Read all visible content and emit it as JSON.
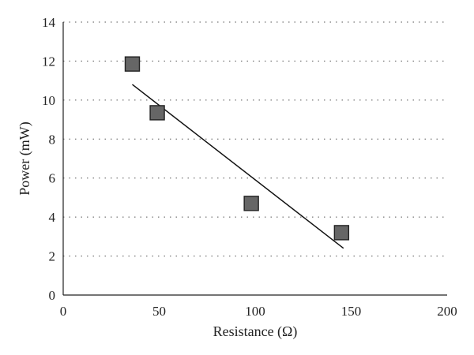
{
  "chart_data": {
    "type": "scatter",
    "xlabel": "Resistance (Ω)",
    "ylabel": "Power (mW)",
    "xlim": [
      0,
      200
    ],
    "ylim": [
      0,
      14
    ],
    "xticks": [
      0,
      50,
      100,
      150,
      200
    ],
    "yticks": [
      0,
      2,
      4,
      6,
      8,
      10,
      12,
      14
    ],
    "xtick_labels": [
      "0",
      "50",
      "100",
      "150",
      "200"
    ],
    "ytick_labels": [
      "0",
      "2",
      "4",
      "6",
      "8",
      "10",
      "12",
      "14"
    ],
    "grid": "horizontal dotted",
    "series": [
      {
        "marker": "square",
        "color": "#666666",
        "points": [
          {
            "x": 36,
            "y": 11.85
          },
          {
            "x": 49,
            "y": 9.35
          },
          {
            "x": 98,
            "y": 4.7
          },
          {
            "x": 145,
            "y": 3.2
          }
        ]
      }
    ],
    "trendline": {
      "x": [
        36,
        146
      ],
      "y": [
        10.8,
        2.4
      ]
    }
  }
}
